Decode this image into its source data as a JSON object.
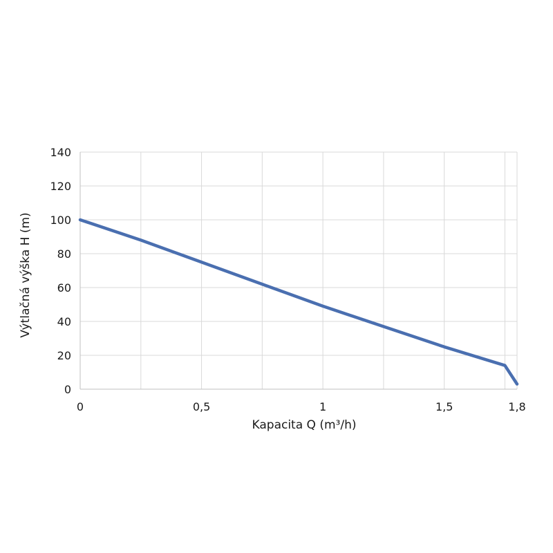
{
  "chart_data": {
    "type": "line",
    "title": "",
    "xlabel": "Kapacita Q (m³/h)",
    "ylabel": "Výtlačná výška H (m)",
    "xlim": [
      0,
      1.8
    ],
    "ylim": [
      0,
      140
    ],
    "x_ticks": [
      0,
      0.5,
      1,
      1.5,
      1.8
    ],
    "x_tick_labels": [
      "0",
      "0,5",
      "1",
      "1,5",
      "1,8"
    ],
    "y_ticks": [
      0,
      20,
      40,
      60,
      80,
      100,
      120,
      140
    ],
    "y_tick_labels": [
      "0",
      "20",
      "40",
      "60",
      "80",
      "100",
      "120",
      "140"
    ],
    "x_gridlines": [
      0.25,
      0.5,
      0.75,
      1,
      1.25,
      1.5,
      1.75
    ],
    "grid": true,
    "legend": "none",
    "series": [
      {
        "color": "#4a6fb0",
        "x": [
          0,
          0.25,
          0.5,
          0.75,
          1,
          1.25,
          1.5,
          1.75,
          1.8
        ],
        "y": [
          100,
          88,
          75,
          62,
          49,
          37,
          25,
          14,
          3
        ]
      }
    ]
  }
}
